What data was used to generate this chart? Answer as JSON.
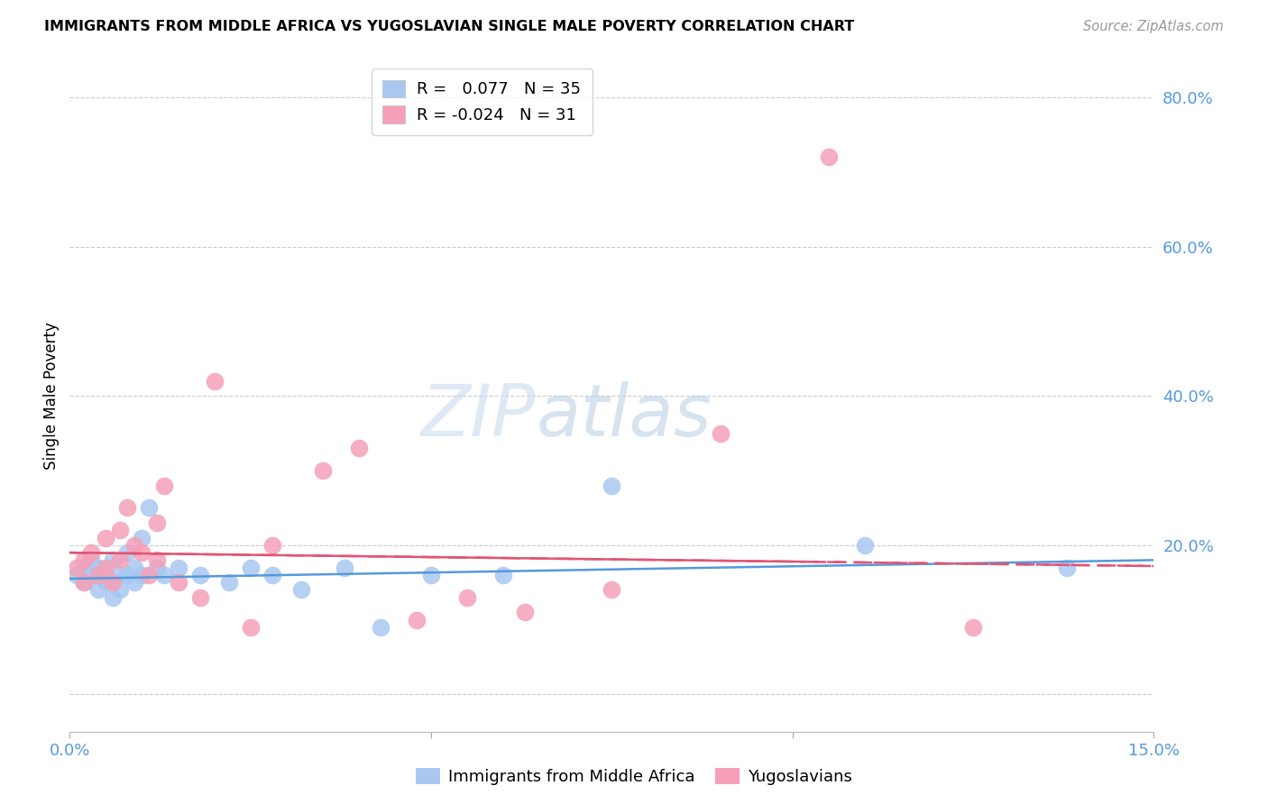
{
  "title": "IMMIGRANTS FROM MIDDLE AFRICA VS YUGOSLAVIAN SINGLE MALE POVERTY CORRELATION CHART",
  "source": "Source: ZipAtlas.com",
  "ylabel": "Single Male Poverty",
  "xlim": [
    0.0,
    0.15
  ],
  "ylim": [
    -0.05,
    0.85
  ],
  "blue_color": "#a8c8f0",
  "pink_color": "#f5a0b8",
  "blue_line_color": "#5599dd",
  "pink_line_color": "#e05575",
  "watermark_zip": "ZIP",
  "watermark_atlas": "atlas",
  "legend_R_blue": " 0.077",
  "legend_N_blue": "35",
  "legend_R_pink": "-0.024",
  "legend_N_pink": "31",
  "blue_scatter_x": [
    0.001,
    0.002,
    0.002,
    0.003,
    0.003,
    0.004,
    0.004,
    0.005,
    0.005,
    0.006,
    0.006,
    0.007,
    0.007,
    0.008,
    0.008,
    0.009,
    0.009,
    0.01,
    0.01,
    0.011,
    0.012,
    0.013,
    0.015,
    0.018,
    0.022,
    0.025,
    0.028,
    0.032,
    0.038,
    0.043,
    0.05,
    0.06,
    0.075,
    0.11,
    0.138
  ],
  "blue_scatter_y": [
    0.16,
    0.17,
    0.15,
    0.16,
    0.18,
    0.14,
    0.17,
    0.15,
    0.16,
    0.13,
    0.18,
    0.16,
    0.14,
    0.19,
    0.16,
    0.17,
    0.15,
    0.21,
    0.16,
    0.25,
    0.17,
    0.16,
    0.17,
    0.16,
    0.15,
    0.17,
    0.16,
    0.14,
    0.17,
    0.09,
    0.16,
    0.16,
    0.28,
    0.2,
    0.17
  ],
  "pink_scatter_x": [
    0.001,
    0.002,
    0.002,
    0.003,
    0.004,
    0.005,
    0.005,
    0.006,
    0.007,
    0.007,
    0.008,
    0.009,
    0.01,
    0.011,
    0.012,
    0.012,
    0.013,
    0.015,
    0.018,
    0.02,
    0.025,
    0.028,
    0.035,
    0.04,
    0.048,
    0.055,
    0.063,
    0.075,
    0.09,
    0.105,
    0.125
  ],
  "pink_scatter_y": [
    0.17,
    0.15,
    0.18,
    0.19,
    0.16,
    0.17,
    0.21,
    0.15,
    0.18,
    0.22,
    0.25,
    0.2,
    0.19,
    0.16,
    0.23,
    0.18,
    0.28,
    0.15,
    0.13,
    0.42,
    0.09,
    0.2,
    0.3,
    0.33,
    0.1,
    0.13,
    0.11,
    0.14,
    0.35,
    0.72,
    0.09
  ],
  "ytick_positions": [
    0.0,
    0.2,
    0.4,
    0.6,
    0.8
  ],
  "ytick_labels": [
    "",
    "20.0%",
    "40.0%",
    "60.0%",
    "80.0%"
  ],
  "xtick_positions": [
    0.0,
    0.05,
    0.1,
    0.15
  ],
  "xtick_labels": [
    "0.0%",
    "",
    "",
    "15.0%"
  ]
}
